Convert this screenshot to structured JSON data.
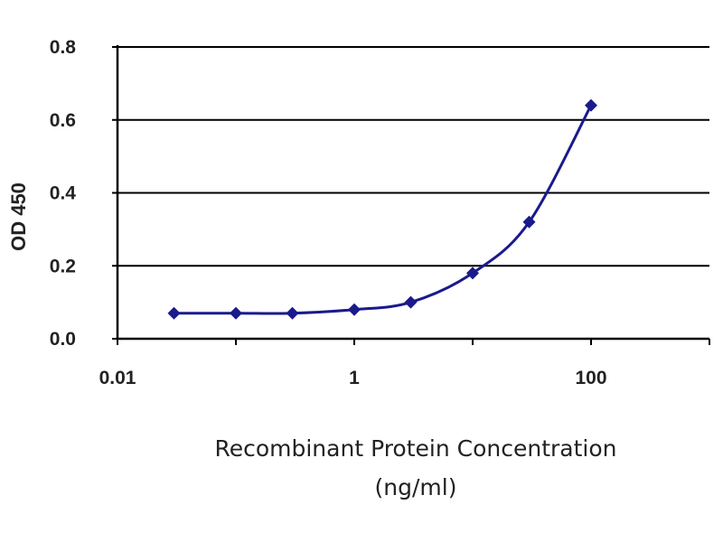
{
  "chart_data": {
    "type": "line",
    "title": "",
    "xlabel": "Recombinant Protein Concentration",
    "xlabel_units": "(ng/ml)",
    "ylabel": "OD 450",
    "x_scale": "log",
    "xlim": [
      0.01,
      1000
    ],
    "ylim": [
      0.0,
      0.8
    ],
    "x_ticks": [
      0.01,
      1,
      100
    ],
    "x_tick_labels": [
      "0.01",
      "1",
      "100"
    ],
    "y_ticks": [
      0.0,
      0.2,
      0.4,
      0.6,
      0.8
    ],
    "y_tick_labels": [
      "0.0",
      "0.2",
      "0.4",
      "0.6",
      "0.8"
    ],
    "grid": "horizontal",
    "legend": "none",
    "series": [
      {
        "x": [
          0.03,
          0.1,
          0.3,
          1,
          3,
          10,
          30,
          100
        ],
        "y": [
          0.07,
          0.07,
          0.07,
          0.08,
          0.1,
          0.18,
          0.32,
          0.64
        ]
      }
    ],
    "colors": {
      "series": "#1a1a8c",
      "grid": "#000000",
      "axis": "#000000"
    }
  }
}
